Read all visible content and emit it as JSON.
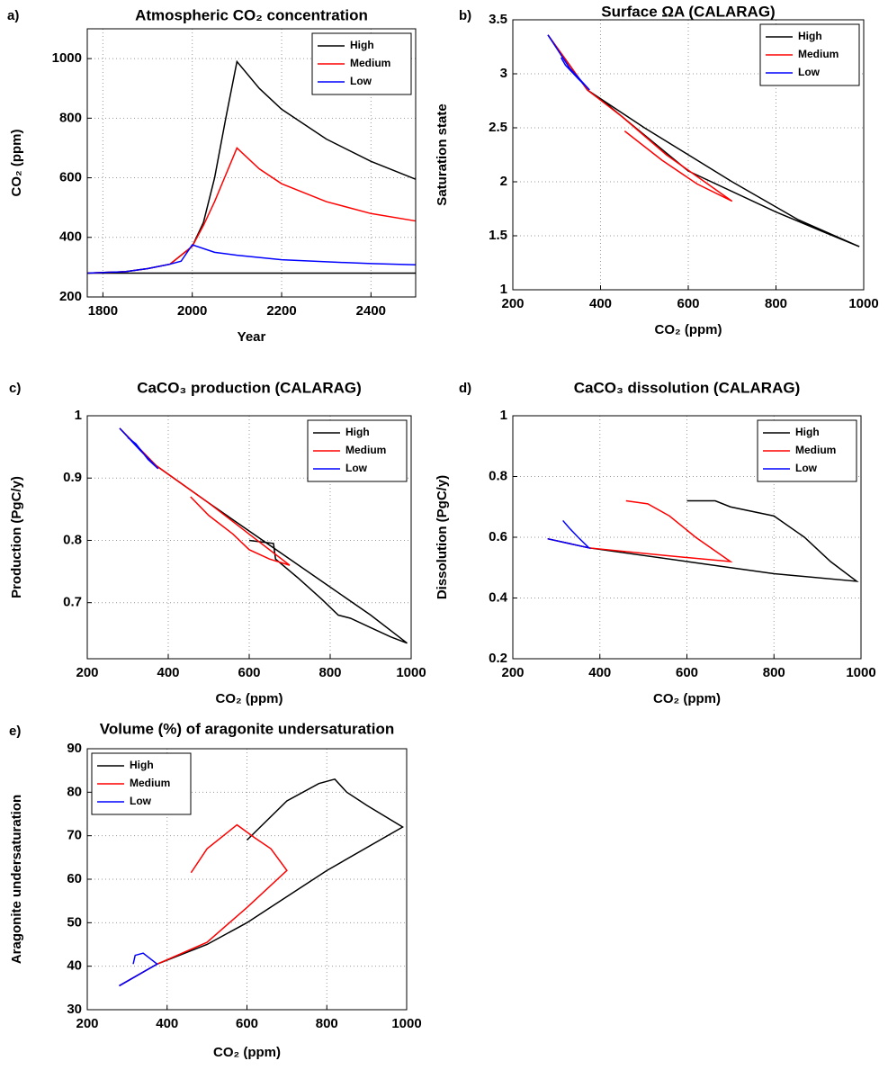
{
  "chart_data": [
    {
      "type": "line",
      "panel_label": "a)",
      "title": "Atmospheric CO₂ concentration",
      "xlabel": "Year",
      "ylabel": "CO₂ (ppm)",
      "xlim": [
        1765,
        2500
      ],
      "xticks": [
        1800,
        2000,
        2200,
        2400
      ],
      "ylim": [
        200,
        1100
      ],
      "yticks": [
        200,
        400,
        600,
        800,
        1000
      ],
      "grid": true,
      "legend": "upper right",
      "series": [
        {
          "color": "#000000",
          "x": [
            1765,
            2500
          ],
          "values": [
            280,
            280
          ]
        },
        {
          "name": "High",
          "color": "#000000",
          "x": [
            1765,
            1850,
            1900,
            1950,
            2000,
            2025,
            2050,
            2075,
            2100,
            2150,
            2200,
            2300,
            2400,
            2500
          ],
          "values": [
            280,
            285,
            295,
            310,
            370,
            450,
            600,
            800,
            990,
            900,
            830,
            730,
            655,
            595
          ]
        },
        {
          "name": "Medium",
          "color": "#ff0000",
          "x": [
            1765,
            1850,
            1900,
            1950,
            2000,
            2025,
            2050,
            2075,
            2100,
            2150,
            2200,
            2300,
            2400,
            2500
          ],
          "values": [
            280,
            285,
            295,
            310,
            370,
            440,
            520,
            610,
            700,
            630,
            580,
            520,
            480,
            455
          ]
        },
        {
          "name": "Low",
          "color": "#0000ff",
          "x": [
            1765,
            1850,
            1900,
            1950,
            1975,
            2000,
            2050,
            2100,
            2200,
            2300,
            2400,
            2500
          ],
          "values": [
            280,
            285,
            295,
            310,
            320,
            375,
            350,
            340,
            325,
            318,
            312,
            308
          ]
        }
      ]
    },
    {
      "type": "line",
      "panel_label": "b)",
      "title": "Surface ΩA (CALARAG)",
      "xlabel": "CO₂ (ppm)",
      "ylabel": "Saturation state",
      "xlim": [
        200,
        1000
      ],
      "xticks": [
        200,
        400,
        600,
        800,
        1000
      ],
      "ylim": [
        1,
        3.5
      ],
      "yticks": [
        1,
        1.5,
        2,
        2.5,
        3,
        3.5
      ],
      "grid": true,
      "legend": "upper right",
      "series": [
        {
          "name": "High",
          "color": "#000000",
          "x": [
            280,
            370,
            500,
            700,
            850,
            990,
            900,
            800,
            600,
            420,
            370
          ],
          "values": [
            3.36,
            2.85,
            2.5,
            2.0,
            1.65,
            1.4,
            1.55,
            1.72,
            2.1,
            2.7,
            2.85
          ]
        },
        {
          "name": "Medium",
          "color": "#ff0000",
          "x": [
            280,
            370,
            450,
            550,
            700,
            620,
            540,
            455
          ],
          "values": [
            3.36,
            2.85,
            2.6,
            2.25,
            1.82,
            1.98,
            2.2,
            2.47
          ]
        },
        {
          "name": "Low",
          "color": "#0000ff",
          "x": [
            280,
            330,
            375,
            350,
            320,
            310
          ],
          "values": [
            3.36,
            3.05,
            2.85,
            2.95,
            3.08,
            3.15
          ]
        }
      ]
    },
    {
      "type": "line",
      "panel_label": "c)",
      "title": "CaCO₃ production (CALARAG)",
      "xlabel": "CO₂ (ppm)",
      "ylabel": "Production (PgC/y)",
      "xlim": [
        200,
        1000
      ],
      "xticks": [
        200,
        400,
        600,
        800,
        1000
      ],
      "ylim": [
        0.61,
        1
      ],
      "yticks": [
        0.7,
        0.8,
        0.9,
        1
      ],
      "grid": true,
      "legend": "upper right",
      "series": [
        {
          "name": "High",
          "color": "#000000",
          "x": [
            280,
            370,
            500,
            700,
            800,
            900,
            990,
            950,
            900,
            850,
            820,
            780,
            720,
            665,
            660,
            600
          ],
          "values": [
            0.98,
            0.92,
            0.86,
            0.77,
            0.725,
            0.68,
            0.635,
            0.645,
            0.66,
            0.675,
            0.68,
            0.705,
            0.74,
            0.77,
            0.795,
            0.8
          ]
        },
        {
          "name": "Medium",
          "color": "#ff0000",
          "x": [
            280,
            370,
            500,
            600,
            700,
            650,
            600,
            560,
            500,
            455
          ],
          "values": [
            0.98,
            0.92,
            0.86,
            0.81,
            0.76,
            0.77,
            0.785,
            0.81,
            0.84,
            0.87
          ]
        },
        {
          "name": "Low",
          "color": "#0000ff",
          "x": [
            280,
            330,
            375,
            350,
            320,
            300
          ],
          "values": [
            0.98,
            0.945,
            0.915,
            0.93,
            0.955,
            0.965
          ]
        }
      ]
    },
    {
      "type": "line",
      "panel_label": "d)",
      "title": "CaCO₃ dissolution (CALARAG)",
      "xlabel": "CO₂ (ppm)",
      "ylabel": "Dissolution (PgC/y)",
      "xlim": [
        200,
        1000
      ],
      "xticks": [
        200,
        400,
        600,
        800,
        1000
      ],
      "ylim": [
        0.2,
        1
      ],
      "yticks": [
        0.2,
        0.4,
        0.6,
        0.8,
        1
      ],
      "grid": true,
      "legend": "upper right",
      "series": [
        {
          "name": "High",
          "color": "#000000",
          "x": [
            280,
            375,
            600,
            800,
            990,
            930,
            870,
            800,
            700,
            665,
            600
          ],
          "values": [
            0.595,
            0.565,
            0.52,
            0.48,
            0.455,
            0.52,
            0.6,
            0.67,
            0.7,
            0.72,
            0.72
          ]
        },
        {
          "name": "Medium",
          "color": "#ff0000",
          "x": [
            280,
            375,
            550,
            700,
            620,
            560,
            510,
            460
          ],
          "values": [
            0.595,
            0.565,
            0.54,
            0.52,
            0.6,
            0.67,
            0.71,
            0.72
          ]
        },
        {
          "name": "Low",
          "color": "#0000ff",
          "x": [
            280,
            375,
            350,
            330,
            315
          ],
          "values": [
            0.595,
            0.565,
            0.6,
            0.63,
            0.655
          ]
        }
      ]
    },
    {
      "type": "line",
      "panel_label": "e)",
      "title": "Volume (%) of aragonite undersaturation",
      "xlabel": "CO₂ (ppm)",
      "ylabel": "Aragonite undersaturation",
      "xlim": [
        200,
        1000
      ],
      "xticks": [
        200,
        400,
        600,
        800,
        1000
      ],
      "ylim": [
        30,
        90
      ],
      "yticks": [
        30,
        40,
        50,
        60,
        70,
        80,
        90
      ],
      "grid": true,
      "legend": "upper left",
      "series": [
        {
          "name": "High",
          "color": "#000000",
          "x": [
            280,
            375,
            500,
            600,
            800,
            990,
            900,
            850,
            820,
            780,
            700,
            600
          ],
          "values": [
            35.5,
            40.5,
            45,
            50,
            62,
            72,
            77,
            80,
            83,
            82,
            78,
            69
          ]
        },
        {
          "name": "Medium",
          "color": "#ff0000",
          "x": [
            280,
            375,
            500,
            600,
            700,
            660,
            620,
            575,
            500,
            460
          ],
          "values": [
            35.5,
            40.5,
            45.5,
            53.5,
            62,
            67,
            69.5,
            72.5,
            67,
            61.5
          ]
        },
        {
          "name": "Low",
          "color": "#0000ff",
          "x": [
            280,
            375,
            340,
            320,
            315
          ],
          "values": [
            35.5,
            40.5,
            43,
            42.5,
            40.5
          ]
        }
      ]
    }
  ]
}
